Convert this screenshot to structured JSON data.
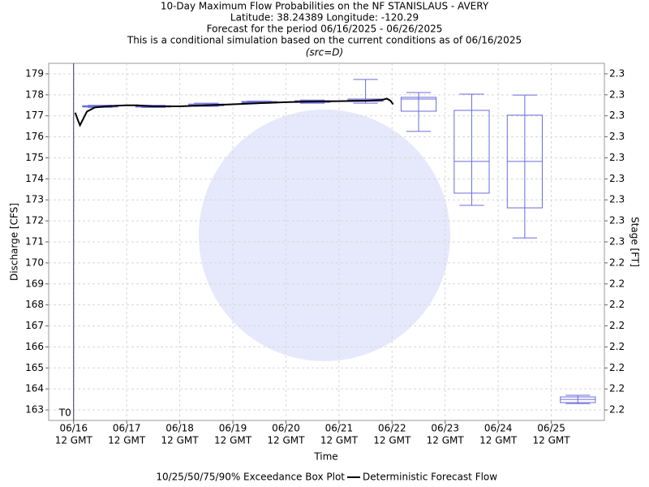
{
  "chart_data": {
    "type": "box",
    "title": "10-Day Maximum Flow Probabilities on the NF STANISLAUS - AVERY",
    "subtitle_lines": [
      "Latitude: 38.24389 Longitude: -120.29",
      "Forecast for the period 06/16/2025 - 06/26/2025",
      "This is a conditional simulation based on the current conditions as of 06/16/2025"
    ],
    "source": "(src=D)",
    "ylabel": "Discharge [CFS]",
    "y2label": "Stage [FT]",
    "xlabel": "Time",
    "marker_label": "T0",
    "marker_x": 0,
    "xlim": [
      -0.47,
      10.0
    ],
    "xticks": [
      {
        "value": 0,
        "label": "06/16"
      },
      {
        "value": 1,
        "label": "06/17"
      },
      {
        "value": 2,
        "label": "06/18"
      },
      {
        "value": 3,
        "label": "06/19"
      },
      {
        "value": 4,
        "label": "06/20"
      },
      {
        "value": 5,
        "label": "06/21"
      },
      {
        "value": 6,
        "label": "06/22"
      },
      {
        "value": 7,
        "label": "06/23"
      },
      {
        "value": 8,
        "label": "06/24"
      },
      {
        "value": 9,
        "label": "06/25"
      }
    ],
    "xtick_sublabels": [
      "12 GMT",
      "12 GMT",
      "12 GMT",
      "12 GMT",
      "12 GMT",
      "12 GMT",
      "12 GMT",
      "12 GMT",
      "12 GMT",
      "12 GMT"
    ],
    "ylim": [
      162.5,
      179.5
    ],
    "yticks": [
      163,
      164,
      165,
      166,
      167,
      168,
      169,
      170,
      171,
      172,
      173,
      174,
      175,
      176,
      177,
      178,
      179
    ],
    "y2lim": [
      2.17,
      2.34
    ],
    "y2ticks": [
      {
        "value": 2.175,
        "label": "2.2"
      },
      {
        "value": 2.185,
        "label": "2.2"
      },
      {
        "value": 2.195,
        "label": "2.2"
      },
      {
        "value": 2.205,
        "label": "2.2"
      },
      {
        "value": 2.215,
        "label": "2.2"
      },
      {
        "value": 2.225,
        "label": "2.2"
      },
      {
        "value": 2.235,
        "label": "2.2"
      },
      {
        "value": 2.245,
        "label": "2.2"
      },
      {
        "value": 2.255,
        "label": "2.3"
      },
      {
        "value": 2.265,
        "label": "2.3"
      },
      {
        "value": 2.275,
        "label": "2.3"
      },
      {
        "value": 2.285,
        "label": "2.3"
      },
      {
        "value": 2.295,
        "label": "2.3"
      },
      {
        "value": 2.305,
        "label": "2.3"
      },
      {
        "value": 2.315,
        "label": "2.3"
      },
      {
        "value": 2.325,
        "label": "2.3"
      },
      {
        "value": 2.335,
        "label": "2.3"
      }
    ],
    "grid": true,
    "boxes": {
      "name": "10/25/50/75/90% Exceedance Box Plot",
      "color": "#6b6bdb",
      "x": [
        0.5,
        1.5,
        2.5,
        3.5,
        4.5,
        5.5,
        6.5,
        7.5,
        8.5,
        9.5
      ],
      "low": [
        177.4,
        177.4,
        177.45,
        177.6,
        177.6,
        177.6,
        176.26,
        172.74,
        171.19,
        163.3
      ],
      "q1": [
        177.42,
        177.42,
        177.48,
        177.62,
        177.64,
        177.69,
        177.22,
        173.32,
        172.62,
        163.35
      ],
      "median": [
        177.45,
        177.45,
        177.52,
        177.65,
        177.68,
        177.75,
        177.8,
        174.83,
        174.83,
        163.5
      ],
      "q3": [
        177.48,
        177.48,
        177.56,
        177.68,
        177.72,
        177.8,
        177.88,
        177.26,
        177.03,
        163.62
      ],
      "high": [
        177.5,
        177.5,
        177.6,
        177.7,
        177.75,
        178.73,
        178.11,
        178.03,
        177.99,
        163.7
      ]
    },
    "series": [
      {
        "name": "Deterministic Forecast Flow",
        "color": "#000000",
        "x": [
          0.03,
          0.08,
          0.12,
          0.15,
          0.25,
          0.4,
          0.6,
          0.8,
          1.0,
          1.2,
          1.5,
          2.0,
          2.5,
          3.0,
          3.5,
          4.0,
          4.5,
          5.0,
          5.5,
          5.8,
          5.9,
          5.97,
          6.02
        ],
        "values": [
          177.15,
          176.8,
          176.55,
          176.7,
          177.2,
          177.4,
          177.45,
          177.48,
          177.5,
          177.5,
          177.45,
          177.45,
          177.5,
          177.55,
          177.6,
          177.65,
          177.68,
          177.7,
          177.72,
          177.75,
          177.82,
          177.72,
          177.55
        ]
      }
    ]
  }
}
